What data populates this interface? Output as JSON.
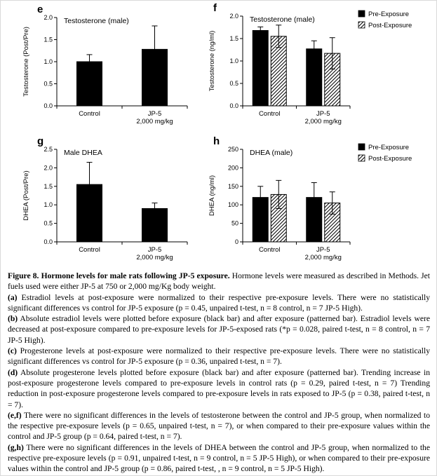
{
  "colors": {
    "bar_fill": "#000000",
    "background": "#ffffff",
    "axis": "#000000"
  },
  "chart_data": [
    {
      "letter": "e",
      "type": "bar",
      "title": "Testosterone (male)",
      "ylabel": "Testosterone (Post/Pre)",
      "xlabel": "",
      "ymax": 2.0,
      "yticks": [
        0,
        0.5,
        1,
        1.5,
        2
      ],
      "ytick_labels": [
        "0.0",
        "0.5",
        "1.0",
        "1.5",
        "2.0"
      ],
      "categories": [
        [
          "Control"
        ],
        [
          "JP-5",
          "2,000 mg/kg"
        ]
      ],
      "legend": false,
      "series": [
        {
          "name": "Post/Pre",
          "pattern": "solid",
          "values": [
            1.0,
            1.28
          ],
          "errors": [
            0.16,
            0.53
          ]
        }
      ]
    },
    {
      "letter": "f",
      "type": "bar",
      "title": "Testosterone (male)",
      "ylabel": "Testosterone (ng/ml)",
      "xlabel": "",
      "ymax": 2.0,
      "yticks": [
        0,
        0.5,
        1,
        1.5,
        2
      ],
      "ytick_labels": [
        "0.0",
        "0.5",
        "1.0",
        "1.5",
        "2.0"
      ],
      "categories": [
        [
          "Control"
        ],
        [
          "JP-5",
          "2,000 mg/kg"
        ]
      ],
      "legend": true,
      "series": [
        {
          "name": "Pre-Exposure",
          "pattern": "solid",
          "values": [
            1.68,
            1.27
          ],
          "errors": [
            0.08,
            0.18
          ]
        },
        {
          "name": "Post-Exposure",
          "pattern": "hatch",
          "values": [
            1.55,
            1.17
          ],
          "errors": [
            0.25,
            0.35
          ]
        }
      ]
    },
    {
      "letter": "g",
      "type": "bar",
      "title": "Male DHEA",
      "ylabel": "DHEA (Post/Pre)",
      "xlabel": "",
      "ymax": 2.5,
      "yticks": [
        0,
        0.5,
        1,
        1.5,
        2,
        2.5
      ],
      "ytick_labels": [
        "0.0",
        "0.5",
        "1.0",
        "1.5",
        "2.0",
        "2.5"
      ],
      "categories": [
        [
          "Control"
        ],
        [
          "JP-5",
          "2,000 mg/kg"
        ]
      ],
      "legend": false,
      "series": [
        {
          "name": "Post/Pre",
          "pattern": "solid",
          "values": [
            1.55,
            0.9
          ],
          "errors": [
            0.6,
            0.15
          ]
        }
      ]
    },
    {
      "letter": "h",
      "type": "bar",
      "title": "DHEA (male)",
      "ylabel": "DHEA (ng/ml)",
      "xlabel": "",
      "ymax": 250,
      "yticks": [
        0,
        50,
        100,
        150,
        200,
        250
      ],
      "ytick_labels": [
        "0",
        "50",
        "100",
        "150",
        "200",
        "250"
      ],
      "categories": [
        [
          "Control"
        ],
        [
          "JP-5",
          "2,000 mg/kg"
        ]
      ],
      "legend": true,
      "series": [
        {
          "name": "Pre-Exposure",
          "pattern": "solid",
          "values": [
            120,
            120
          ],
          "errors": [
            30,
            40
          ]
        },
        {
          "name": "Post-Exposure",
          "pattern": "hatch",
          "values": [
            128,
            105
          ],
          "errors": [
            38,
            30
          ]
        }
      ]
    }
  ],
  "caption": {
    "paragraphs": [
      {
        "bold": "Figure 8. Hormone levels for male rats following JP-5 exposure.",
        "text": " Hormone levels were measured as described in Methods. Jet fuels used were either JP-5 at 750 or 2,000 mg/Kg body weight."
      },
      {
        "bold": "(a)",
        "text": " Estradiol levels at post-exposure were normalized to their respective pre-exposure levels. There were no statistically significant differences vs control for JP-5 exposure (p = 0.45, unpaired t-test, n = 8 control, n = 7 JP-5 High)."
      },
      {
        "bold": "(b)",
        "text": " Absolute estradiol levels were plotted before exposure (black bar) and after exposure (patterned bar). Estradiol levels were decreased at post-exposure compared to pre-exposure levels for JP-5-exposed rats (*p = 0.028, paired t-test, n = 8 control, n = 7 JP-5 High)."
      },
      {
        "bold": "(c)",
        "text": " Progesterone levels at post-exposure were normalized to their respective pre-exposure levels. There were no statistically significant differences vs control for JP-5 exposure (p = 0.36, unpaired t-test, n = 7)."
      },
      {
        "bold": "(d)",
        "text": " Absolute progesterone levels plotted before exposure (black bar) and after exposure (patterned bar). Trending increase in post-exposure progesterone levels compared to pre-exposure levels in control rats (p = 0.29, paired t-test, n = 7) Trending reduction in post-exposure progesterone levels compared to pre-exposure levels in rats exposed to JP-5 (p = 0.38, paired t-test, n = 7)."
      },
      {
        "bold": "(e,f)",
        "text": " There were no significant differences in the levels of testosterone between the control and JP-5 group, when normalized to the respective pre-exposure levels (p = 0.65, unpaired t-test, n = 7), or when compared to their pre-exposure values within the control and JP-5 group (p = 0.64, paired t-test, n = 7)."
      },
      {
        "bold": "(g,h)",
        "text": " There were no significant differences in the levels of DHEA between the control and JP-5 group, when normalized to the respective pre-exposure levels (p = 0.91, unpaired t-test, n = 9 control, n = 5 JP-5 High), or when compared to their pre-exposure values within the control and JP-5 group (p = 0.86, paired t-test, , n = 9 control, n = 5 JP-5 High)."
      }
    ]
  }
}
